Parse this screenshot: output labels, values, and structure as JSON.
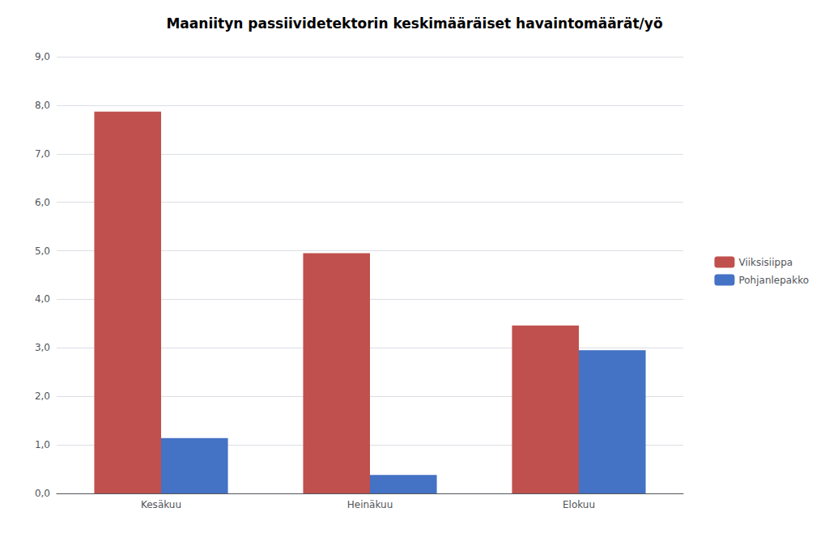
{
  "chart_data": {
    "type": "bar",
    "title": "Maaniityn passiividetektorin keskimääräiset havaintomäärät/yö",
    "categories": [
      "Kesäkuu",
      "Heinäkuu",
      "Elokuu"
    ],
    "series": [
      {
        "name": "Viiksisiippa",
        "color": "#C0504D",
        "values": [
          7.87,
          4.95,
          3.46
        ]
      },
      {
        "name": "Pohjanlepakko",
        "color": "#4472C4",
        "values": [
          1.14,
          0.38,
          2.95
        ]
      }
    ],
    "ylim": [
      0,
      9.0
    ],
    "yticks": [
      {
        "value": 0.0,
        "label": "0,0"
      },
      {
        "value": 1.0,
        "label": "1,0"
      },
      {
        "value": 2.0,
        "label": "2,0"
      },
      {
        "value": 3.0,
        "label": "3,0"
      },
      {
        "value": 4.0,
        "label": "4,0"
      },
      {
        "value": 5.0,
        "label": "5,0"
      },
      {
        "value": 6.0,
        "label": "6,0"
      },
      {
        "value": 7.0,
        "label": "7,0"
      },
      {
        "value": 8.0,
        "label": "8,0"
      },
      {
        "value": 9.0,
        "label": "9,0"
      }
    ],
    "grid": true,
    "legend": "right"
  }
}
